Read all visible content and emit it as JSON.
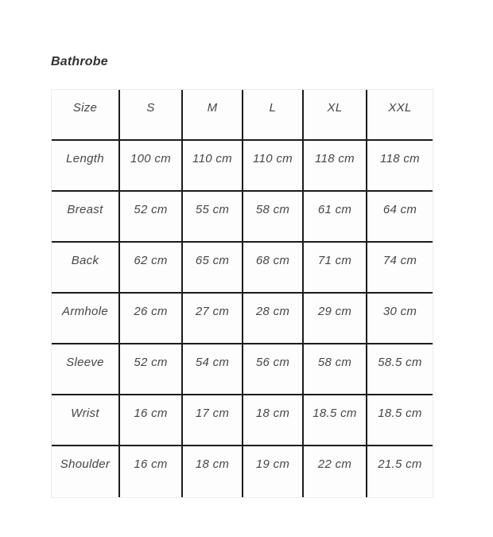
{
  "page": {
    "title": "Bathrobe"
  },
  "size_chart": {
    "columns": [
      "Size",
      "S",
      "M",
      "L",
      "XL",
      "XXL"
    ],
    "rows": [
      {
        "label": "Length",
        "values": [
          "100 cm",
          "110 cm",
          "110 cm",
          "118 cm",
          "118 cm"
        ]
      },
      {
        "label": "Breast",
        "values": [
          "52 cm",
          "55 cm",
          "58 cm",
          "61 cm",
          "64 cm"
        ]
      },
      {
        "label": "Back",
        "values": [
          "62 cm",
          "65 cm",
          "68 cm",
          "71 cm",
          "74 cm"
        ]
      },
      {
        "label": "Armhole",
        "values": [
          "26 cm",
          "27 cm",
          "28 cm",
          "29 cm",
          "30 cm"
        ]
      },
      {
        "label": "Sleeve",
        "values": [
          "52 cm",
          "54 cm",
          "56 cm",
          "58 cm",
          "58.5 cm"
        ]
      },
      {
        "label": "Wrist",
        "values": [
          "16 cm",
          "17 cm",
          "18 cm",
          "18.5 cm",
          "18.5 cm"
        ]
      },
      {
        "label": "Shoulder",
        "values": [
          "16 cm",
          "18 cm",
          "19 cm",
          "22 cm",
          "21.5 cm"
        ]
      }
    ]
  },
  "colors": {
    "inner_border": "#1c1c1c",
    "outer_border": "#ececec",
    "cell_background": "#fdfdfd",
    "text": "#46464d",
    "title_text": "#323232"
  }
}
